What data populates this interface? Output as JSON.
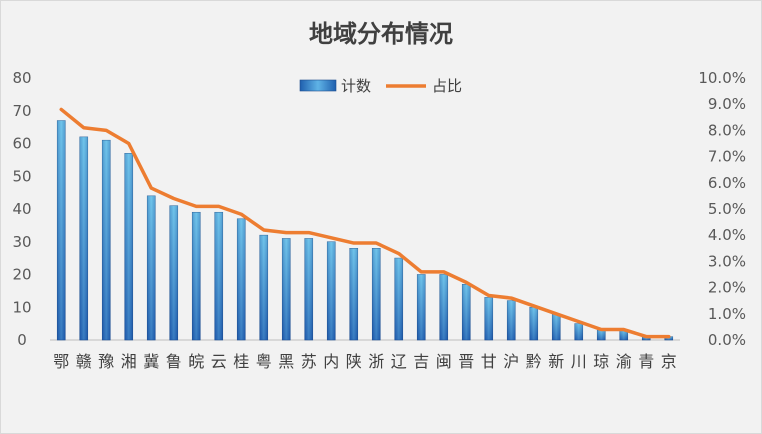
{
  "chart_data": {
    "type": "bar",
    "title": "地域分布情况",
    "categories": [
      "鄂",
      "赣",
      "豫",
      "湘",
      "冀",
      "鲁",
      "皖",
      "云",
      "桂",
      "粤",
      "黑",
      "苏",
      "内",
      "陕",
      "浙",
      "辽",
      "吉",
      "闽",
      "晋",
      "甘",
      "沪",
      "黔",
      "新",
      "川",
      "琼",
      "渝",
      "青",
      "京"
    ],
    "series": [
      {
        "name": "计数",
        "type": "bar",
        "axis": "left",
        "color": "#2e75b6",
        "values": [
          67,
          62,
          61,
          57,
          44,
          41,
          39,
          39,
          37,
          32,
          31,
          31,
          30,
          28,
          28,
          25,
          20,
          20,
          17,
          13,
          12,
          10,
          8,
          5,
          3,
          3,
          1,
          1
        ]
      },
      {
        "name": "占比",
        "type": "line",
        "axis": "right",
        "color": "#ed7d31",
        "values": [
          8.8,
          8.1,
          8.0,
          7.5,
          5.8,
          5.4,
          5.1,
          5.1,
          4.8,
          4.2,
          4.1,
          4.1,
          3.9,
          3.7,
          3.7,
          3.3,
          2.6,
          2.6,
          2.2,
          1.7,
          1.6,
          1.3,
          1.0,
          0.7,
          0.4,
          0.4,
          0.13,
          0.13
        ]
      }
    ],
    "ylim": [
      0,
      80
    ],
    "y_ticks": [
      "0",
      "10",
      "20",
      "30",
      "40",
      "50",
      "60",
      "70",
      "80"
    ],
    "y2lim": [
      0,
      10
    ],
    "y2_ticks": [
      "0.0%",
      "1.0%",
      "2.0%",
      "3.0%",
      "4.0%",
      "5.0%",
      "6.0%",
      "7.0%",
      "8.0%",
      "9.0%",
      "10.0%"
    ],
    "legend_position": "top-center",
    "grid": false
  }
}
